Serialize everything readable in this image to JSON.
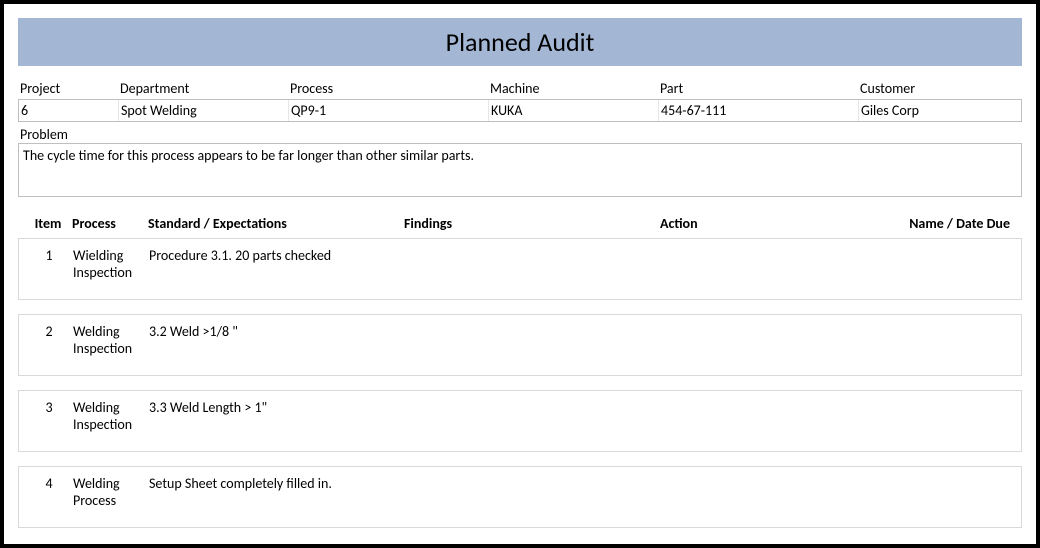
{
  "title": "Planned Audit",
  "colors": {
    "title_bar_bg": "#a3b6d4",
    "border": "#bfbfbf",
    "row_border": "#d9d9d9",
    "outer_border": "#000000",
    "background": "#ffffff",
    "text": "#000000"
  },
  "typography": {
    "title_fontsize": 26,
    "body_fontsize": 14,
    "font_family": "Calibri"
  },
  "info": {
    "labels": {
      "project": "Project",
      "department": "Department",
      "process": "Process",
      "machine": "Machine",
      "part": "Part",
      "customer": "Customer"
    },
    "values": {
      "project": "6",
      "department": "Spot Welding",
      "process": "QP9-1",
      "machine": "KUKA",
      "part": "454-67-111",
      "customer": "Giles Corp"
    }
  },
  "problem": {
    "label": "Problem",
    "text": "The cycle time for this process appears to be far longer than other similar parts."
  },
  "audit_table": {
    "columns": {
      "item": "Item",
      "process": "Process",
      "standard": "Standard / Expectations",
      "findings": "Findings",
      "action": "Action",
      "name_date": "Name / Date Due"
    },
    "rows": [
      {
        "item": "1",
        "process": "Wielding Inspection",
        "standard": "Procedure 3.1. 20 parts checked",
        "findings": "",
        "action": "",
        "name_date": ""
      },
      {
        "item": "2",
        "process": "Welding Inspection",
        "standard": "3.2  Weld >1/8 \"",
        "findings": "",
        "action": "",
        "name_date": ""
      },
      {
        "item": "3",
        "process": "Welding Inspection",
        "standard": "3.3  Weld  Length > 1\"",
        "findings": "",
        "action": "",
        "name_date": ""
      },
      {
        "item": "4",
        "process": "Welding Process",
        "standard": "Setup Sheet completely filled in.",
        "findings": "",
        "action": "",
        "name_date": ""
      }
    ]
  }
}
